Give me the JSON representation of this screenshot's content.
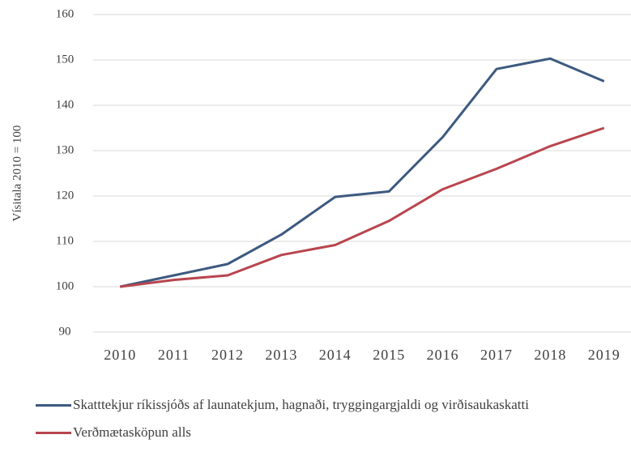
{
  "chart_data": {
    "type": "line",
    "y_label": "Vísitala 2010 = 100",
    "categories": [
      "2010",
      "2011",
      "2012",
      "2013",
      "2014",
      "2015",
      "2016",
      "2017",
      "2018",
      "2019"
    ],
    "series": [
      {
        "name": "Skatttekjur ríkissjóðs af launatekjum, hagnaði, tryggingargjaldi og virðisaukaskatti",
        "color": "#3d5a80",
        "values": [
          100,
          102.5,
          105,
          111.5,
          119.8,
          121,
          133,
          148,
          150.3,
          145.3
        ]
      },
      {
        "name": "Verðmætasköpun alls",
        "color": "#b8454e",
        "values": [
          100,
          101.5,
          102.5,
          107,
          109.2,
          114.5,
          121.5,
          126,
          131,
          135
        ]
      }
    ],
    "ylim": [
      90,
      160
    ],
    "yticks": [
      90,
      100,
      110,
      120,
      130,
      140,
      150,
      160
    ],
    "grid": true,
    "legend": "bottom"
  }
}
